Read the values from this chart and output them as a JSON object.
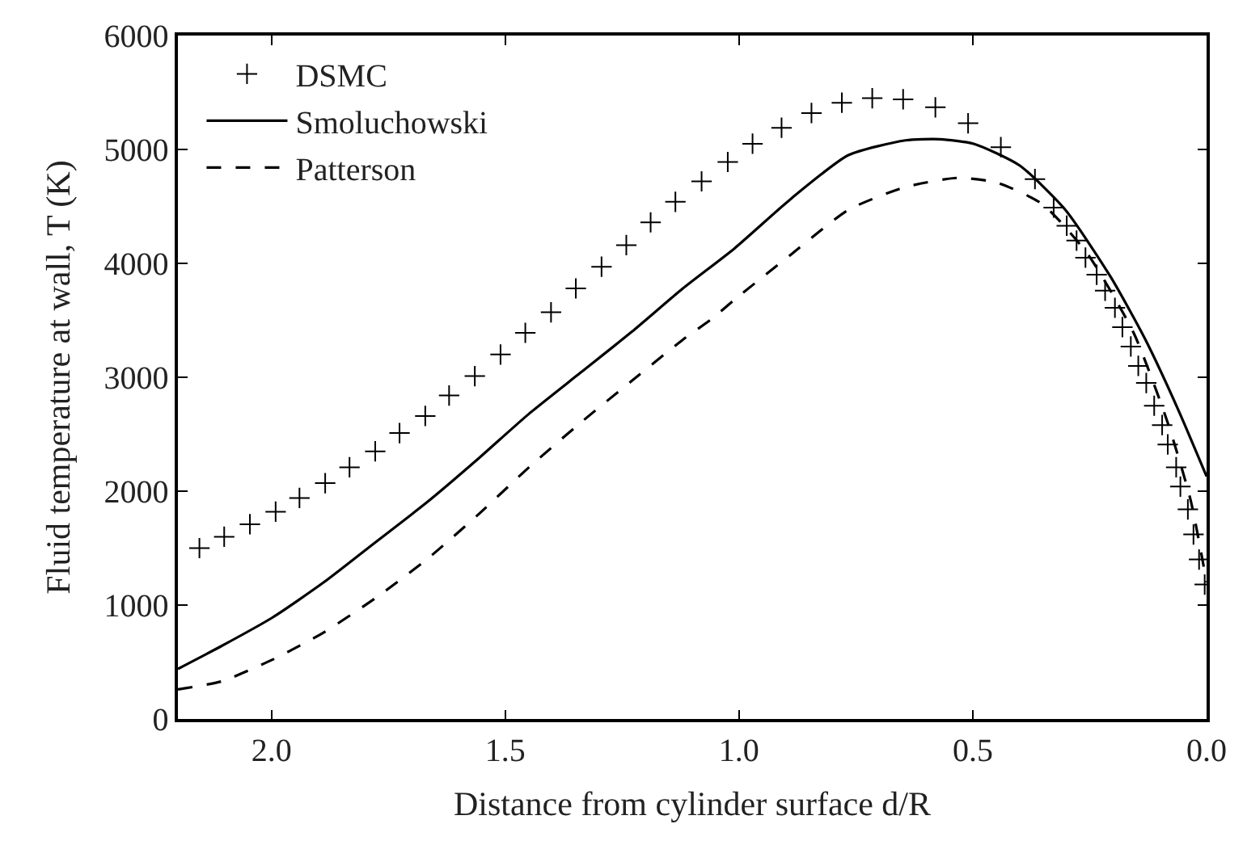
{
  "chart_data": {
    "type": "line",
    "xlabel": "Distance from cylinder surface d/R",
    "ylabel": "Fluid temperature at wall, T (K)",
    "xlim": [
      2.2,
      0.0
    ],
    "xticks": [
      {
        "value": 2.0,
        "label": "2.0"
      },
      {
        "value": 1.5,
        "label": "1.5"
      },
      {
        "value": 1.0,
        "label": "1.0"
      },
      {
        "value": 0.5,
        "label": "0.5"
      },
      {
        "value": 0.0,
        "label": "0.0"
      }
    ],
    "ylim": [
      0,
      6000
    ],
    "yticks": [
      0,
      1000,
      2000,
      3000,
      4000,
      5000,
      6000
    ],
    "legend": "top left",
    "series": [
      {
        "name": "DSMC",
        "type": "scatter",
        "marker": "cross",
        "color": "#000000",
        "x": [
          2.154,
          2.101,
          2.046,
          1.991,
          1.94,
          1.885,
          1.833,
          1.778,
          1.726,
          1.671,
          1.62,
          1.565,
          1.51,
          1.457,
          1.402,
          1.349,
          1.294,
          1.241,
          1.189,
          1.136,
          1.08,
          1.024,
          0.971,
          0.909,
          0.845,
          0.78,
          0.715,
          0.649,
          0.58,
          0.51,
          0.44,
          0.367,
          0.327,
          0.299,
          0.278,
          0.259,
          0.235,
          0.217,
          0.196,
          0.18,
          0.162,
          0.146,
          0.129,
          0.112,
          0.095,
          0.083,
          0.065,
          0.056,
          0.04,
          0.028,
          0.016,
          0.004
        ],
        "values": [
          1500,
          1600,
          1710,
          1820,
          1940,
          2070,
          2210,
          2350,
          2510,
          2660,
          2840,
          3010,
          3200,
          3390,
          3570,
          3780,
          3970,
          4160,
          4360,
          4540,
          4720,
          4890,
          5050,
          5190,
          5320,
          5410,
          5450,
          5440,
          5370,
          5230,
          5020,
          4740,
          4490,
          4330,
          4200,
          4050,
          3900,
          3760,
          3610,
          3440,
          3270,
          3100,
          2950,
          2750,
          2580,
          2410,
          2210,
          2040,
          1840,
          1620,
          1400,
          1180
        ]
      },
      {
        "name": "Smoluchowski",
        "marker": "none",
        "line_style": "solid",
        "color": "#000000",
        "x": [
          2.2,
          2.107,
          1.998,
          1.888,
          1.778,
          1.668,
          1.559,
          1.449,
          1.339,
          1.229,
          1.12,
          1.01,
          0.888,
          0.766,
          0.644,
          0.571,
          0.498,
          0.4,
          0.302,
          0.205,
          0.132,
          0.059,
          0.0
        ],
        "values": [
          440,
          640,
          890,
          1200,
          1550,
          1900,
          2280,
          2680,
          3040,
          3400,
          3780,
          4130,
          4570,
          4950,
          5080,
          5090,
          5050,
          4860,
          4470,
          3880,
          3340,
          2700,
          2130
        ]
      },
      {
        "name": "Patterson",
        "marker": "none",
        "line_style": "dashed",
        "color": "#000000",
        "x": [
          2.2,
          2.107,
          1.998,
          1.888,
          1.778,
          1.668,
          1.559,
          1.449,
          1.339,
          1.229,
          1.12,
          1.059,
          1.01,
          0.888,
          0.766,
          0.644,
          0.534,
          0.449,
          0.351,
          0.254,
          0.156,
          0.083,
          0.034,
          0.0
        ],
        "values": [
          260,
          330,
          520,
          760,
          1060,
          1400,
          1790,
          2210,
          2600,
          2970,
          3330,
          3510,
          3680,
          4080,
          4470,
          4670,
          4750,
          4710,
          4520,
          4080,
          3390,
          2600,
          1920,
          1200
        ]
      }
    ]
  }
}
